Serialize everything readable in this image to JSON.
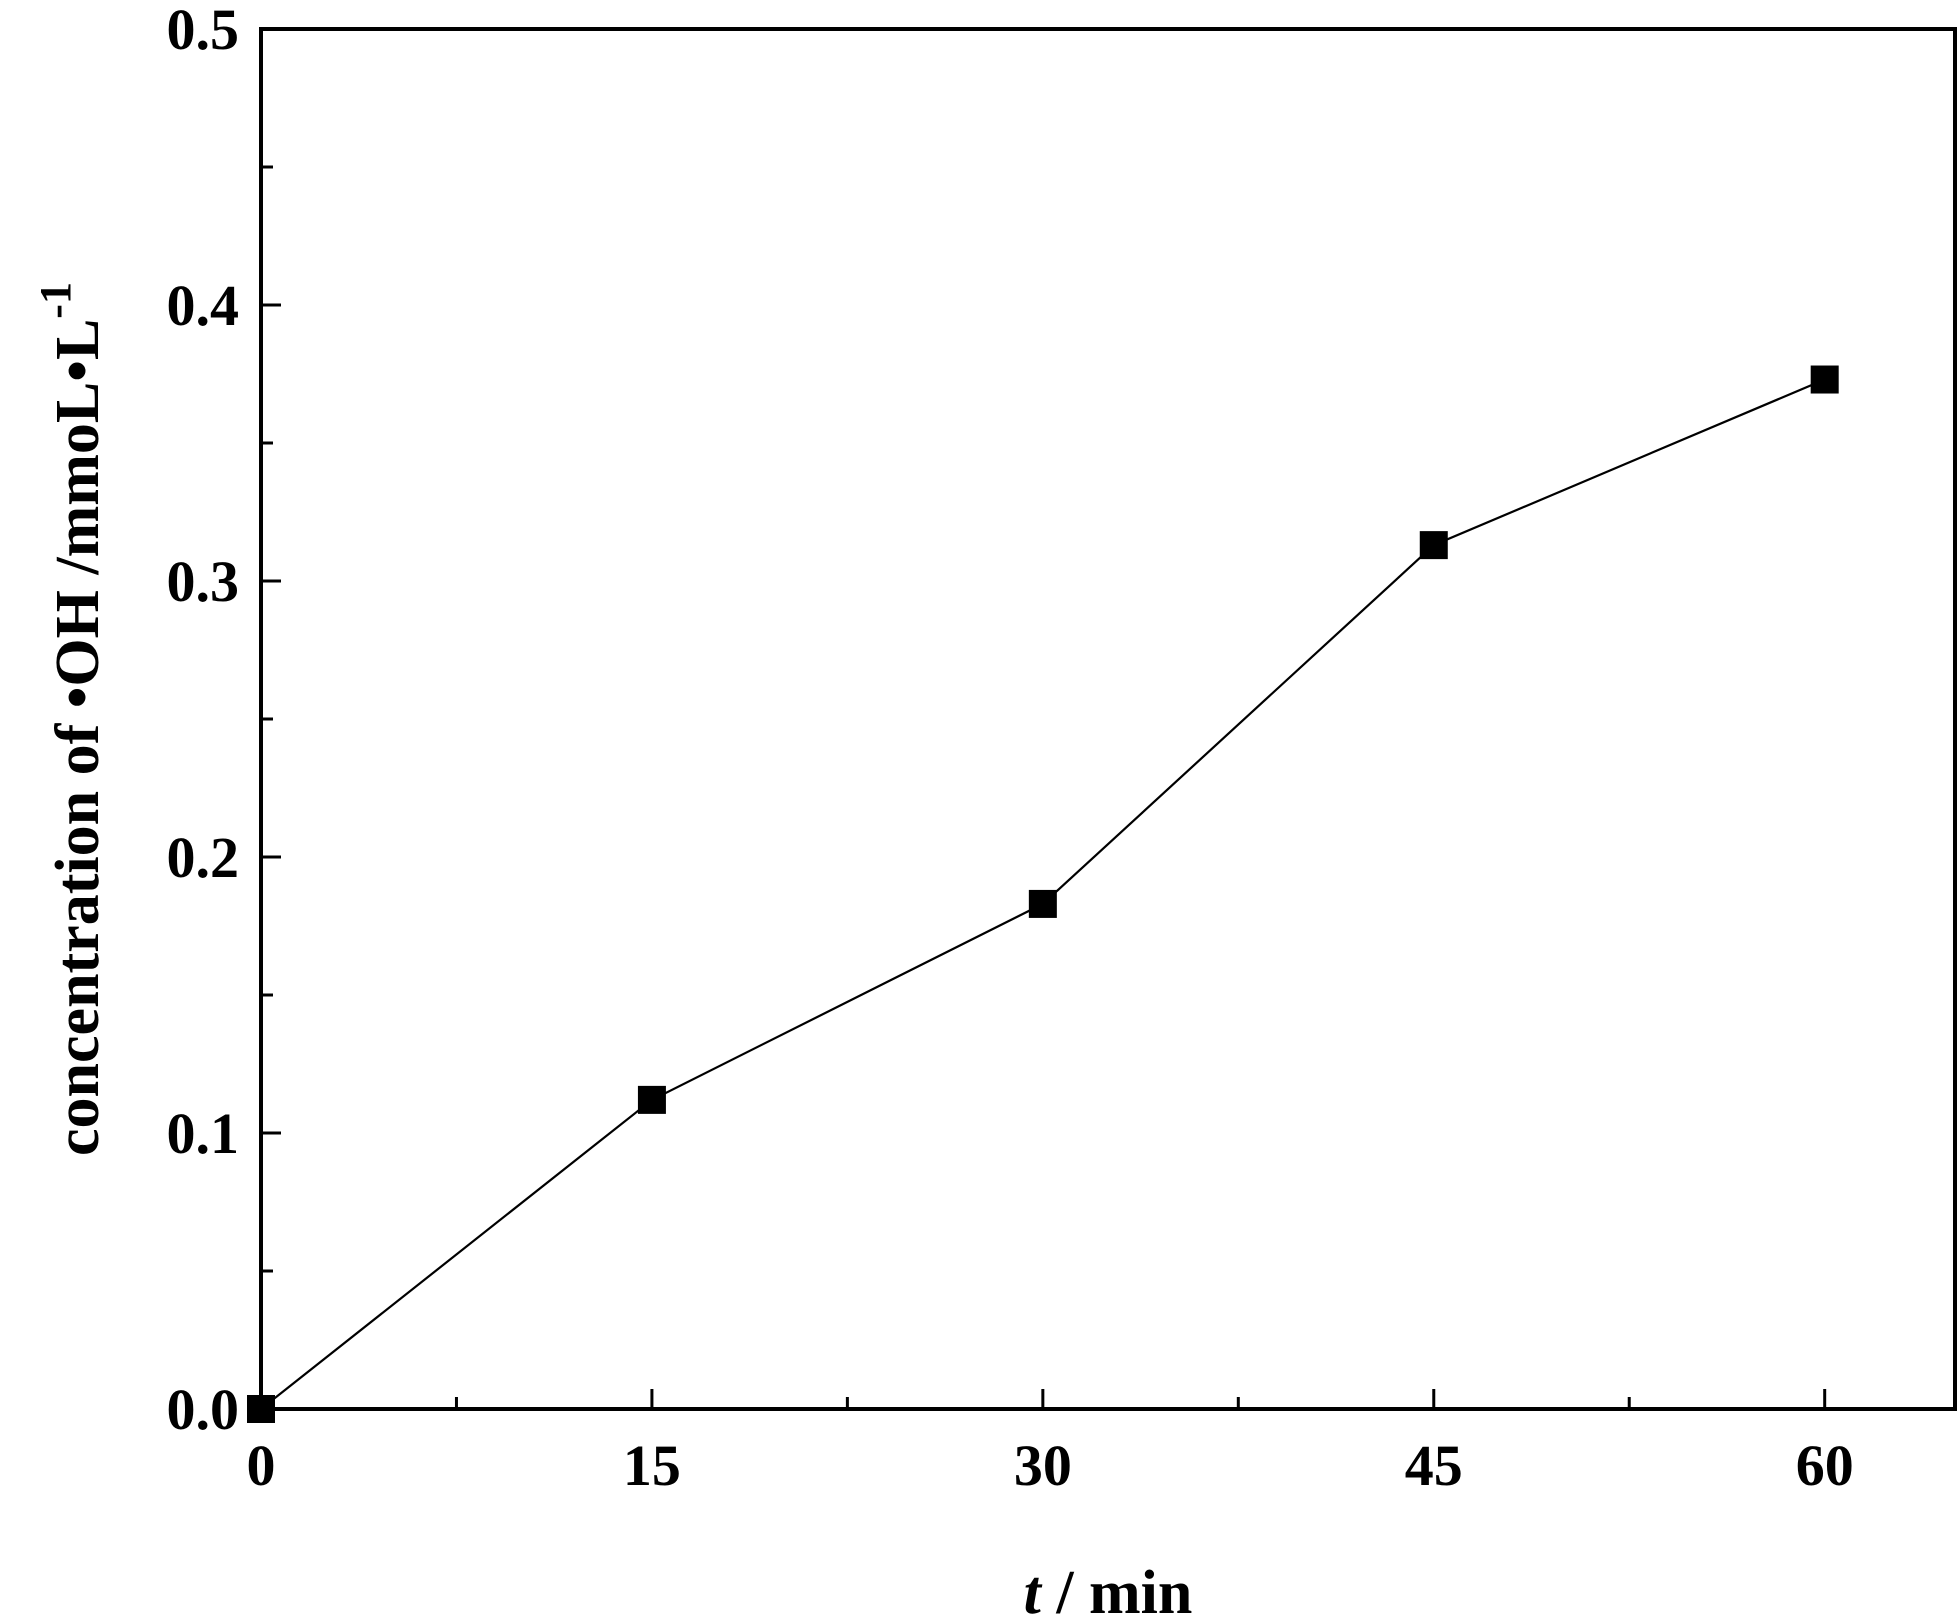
{
  "chart_data": {
    "type": "line",
    "x": [
      0,
      15,
      30,
      45,
      60
    ],
    "series": [
      {
        "values": [
          0.0,
          0.112,
          0.183,
          0.313,
          0.373
        ],
        "marker": "square",
        "color": "#000000"
      }
    ],
    "xlabel": {
      "italic_part": "t",
      "rest": " / min"
    },
    "ylabel": {
      "main": "concentration of •OH /mmoL•L",
      "superscript": "-1"
    },
    "xlim": [
      0,
      65
    ],
    "ylim": [
      0,
      0.5
    ],
    "x_ticks": [
      0,
      15,
      30,
      45,
      60
    ],
    "x_tick_labels": [
      "0",
      "15",
      "30",
      "45",
      "60"
    ],
    "x_minor_ticks": [
      7.5,
      22.5,
      37.5,
      52.5
    ],
    "y_ticks": [
      0.0,
      0.1,
      0.2,
      0.3,
      0.4,
      0.5
    ],
    "y_tick_labels": [
      "0.0",
      "0.1",
      "0.2",
      "0.3",
      "0.4",
      "0.5"
    ],
    "y_minor_ticks": [
      0.05,
      0.15,
      0.25,
      0.35,
      0.45
    ],
    "grid": false,
    "legend": "none"
  }
}
